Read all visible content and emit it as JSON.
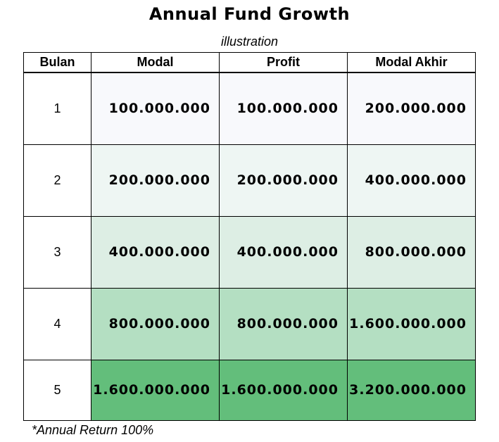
{
  "title": "Annual Fund Growth",
  "subtitle": "illustration",
  "table": {
    "headers": [
      "Bulan",
      "Modal",
      "Profit",
      "Modal Akhir"
    ],
    "rows": [
      {
        "month": "1",
        "modal": "100.000.000",
        "profit": "100.000.000",
        "modal_akhir": "200.000.000",
        "color": "#f8f9fc"
      },
      {
        "month": "2",
        "modal": "200.000.000",
        "profit": "200.000.000",
        "modal_akhir": "400.000.000",
        "color": "#eef6f3"
      },
      {
        "month": "3",
        "modal": "400.000.000",
        "profit": "400.000.000",
        "modal_akhir": "800.000.000",
        "color": "#ddeee4"
      },
      {
        "month": "4",
        "modal": "800.000.000",
        "profit": "800.000.000",
        "modal_akhir": "1.600.000.000",
        "color": "#b4dfc2"
      },
      {
        "month": "5",
        "modal": "1.600.000.000",
        "profit": "1.600.000.000",
        "modal_akhir": "3.200.000.000",
        "color": "#63be7b"
      }
    ]
  },
  "footnote": "*Annual Return 100%"
}
